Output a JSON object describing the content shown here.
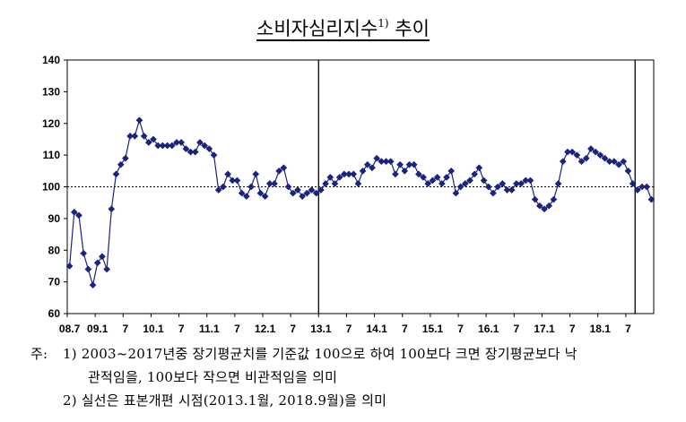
{
  "title": {
    "text": "소비자심리지수",
    "superscript": "1)",
    "suffix": " 추이"
  },
  "notes": {
    "prefix": "주:",
    "line1": "1) 2003~2017년중 장기평균치를 기준값 100으로 하여 100보다 크면 장기평균보다 낙",
    "line2": "관적임을, 100보다 작으면 비관적임을 의미",
    "line3": "2) 실선은 표본개편 시점(2013.1월, 2018.9월)을 의미"
  },
  "chart_data": {
    "type": "line",
    "title": "소비자심리지수1) 추이",
    "xlabel": "",
    "ylabel": "",
    "ylim": [
      60,
      140
    ],
    "yticks": [
      60,
      70,
      80,
      90,
      100,
      110,
      120,
      130,
      140
    ],
    "x_tick_labels": [
      "08.7",
      "09.1",
      "7",
      "10.1",
      "7",
      "11.1",
      "7",
      "12.1",
      "7",
      "13.1",
      "7",
      "14.1",
      "7",
      "15.1",
      "7",
      "16.1",
      "7",
      "17.1",
      "7",
      "18.1",
      "7"
    ],
    "x_start": "2008-07",
    "x_end": "2018-11",
    "reference_line": 100,
    "vertical_lines": [
      "2013-01",
      "2018-09"
    ],
    "series": [
      {
        "color": "#1a237e",
        "marker": "diamond",
        "values": [
          75,
          92,
          91,
          79,
          74,
          69,
          76,
          78,
          74,
          93,
          104,
          107,
          109,
          116,
          116,
          121,
          116,
          114,
          115,
          113,
          113,
          113,
          113,
          114,
          114,
          112,
          111,
          111,
          114,
          113,
          112,
          110,
          99,
          100,
          104,
          102,
          102,
          98,
          97,
          100,
          104,
          98,
          97,
          101,
          101,
          105,
          106,
          100,
          98,
          99,
          97,
          98,
          99,
          98,
          99,
          101,
          103,
          101,
          103,
          104,
          104,
          104,
          101,
          105,
          107,
          106,
          109,
          108,
          108,
          108,
          104,
          107,
          105,
          107,
          107,
          104,
          103,
          101,
          102,
          103,
          101,
          103,
          105,
          98,
          100,
          101,
          102,
          104,
          106,
          102,
          100,
          98,
          100,
          101,
          99,
          99,
          101,
          101,
          102,
          102,
          96,
          94,
          93,
          94,
          96,
          101,
          108,
          111,
          111,
          110,
          108,
          109,
          112,
          111,
          110,
          109,
          108,
          108,
          107,
          108,
          105,
          101,
          99,
          100,
          100,
          96
        ]
      }
    ]
  }
}
